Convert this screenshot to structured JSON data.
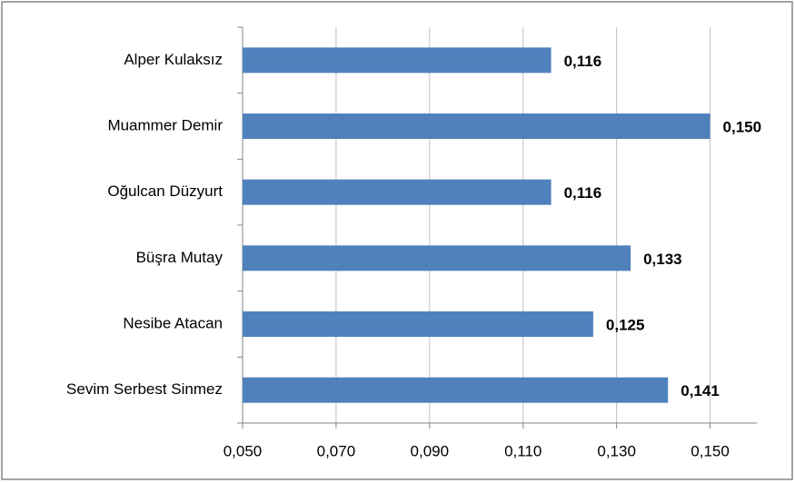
{
  "chart_data": {
    "type": "bar",
    "orientation": "horizontal",
    "categories": [
      "Alper Kulaksız",
      "Muammer Demir",
      "Oğulcan Düzyurt",
      "Büşra Mutay",
      "Nesibe Atacan",
      "Sevim Serbest Sinmez"
    ],
    "values": [
      0.116,
      0.15,
      0.116,
      0.133,
      0.125,
      0.141
    ],
    "value_labels": [
      "0,116",
      "0,150",
      "0,116",
      "0,133",
      "0,125",
      "0,141"
    ],
    "color": "#4f81bd",
    "xlim": [
      0.05,
      0.16
    ],
    "xticks": [
      {
        "value": 0.05,
        "label": "0,050"
      },
      {
        "value": 0.07,
        "label": "0,070"
      },
      {
        "value": 0.09,
        "label": "0,090"
      },
      {
        "value": 0.11,
        "label": "0,110"
      },
      {
        "value": 0.13,
        "label": "0,130"
      },
      {
        "value": 0.15,
        "label": "0,150"
      }
    ],
    "grid": true
  }
}
